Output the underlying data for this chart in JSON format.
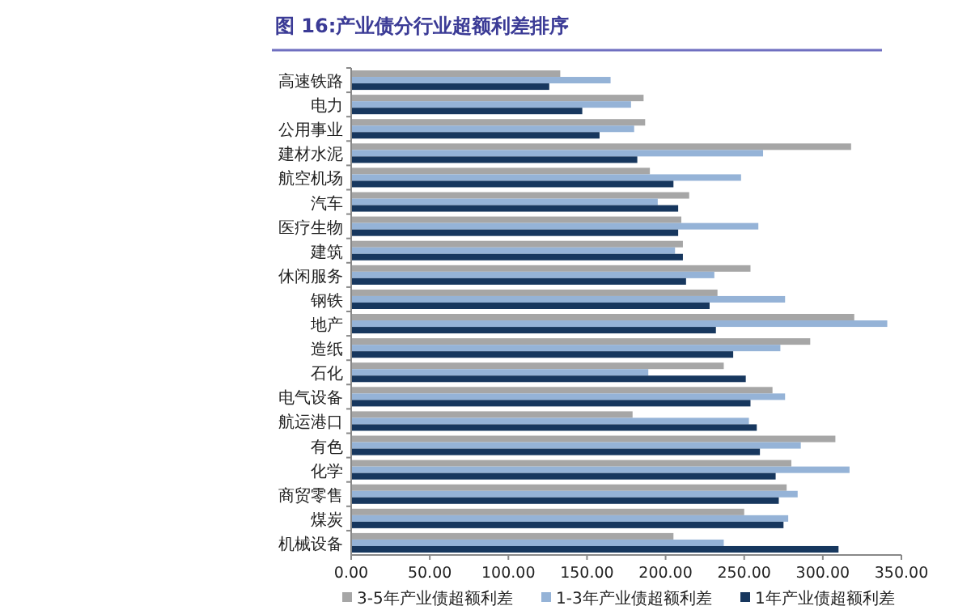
{
  "chart_data": {
    "type": "bar",
    "orientation": "horizontal",
    "title": "图 16:产业债分行业超额利差排序",
    "categories": [
      "高速铁路",
      "电力",
      "公用事业",
      "建材水泥",
      "航空机场",
      "汽车",
      "医疗生物",
      "建筑",
      "休闲服务",
      "钢铁",
      "地产",
      "造纸",
      "石化",
      "电气设备",
      "航运港口",
      "有色",
      "化学",
      "商贸零售",
      "煤炭",
      "机械设备"
    ],
    "series": [
      {
        "name": "3-5年产业债超额利差",
        "color": "#a6a6a6",
        "values": [
          133,
          186,
          187,
          318,
          190,
          215,
          210,
          211,
          254,
          233,
          320,
          292,
          237,
          268,
          179,
          308,
          280,
          277,
          250,
          205
        ]
      },
      {
        "name": "1-3年产业债超额利差",
        "color": "#95b3d7",
        "values": [
          165,
          178,
          180,
          262,
          248,
          195,
          259,
          206,
          231,
          276,
          341,
          273,
          189,
          276,
          253,
          286,
          317,
          284,
          278,
          237
        ]
      },
      {
        "name": "1年产业债超额利差",
        "color": "#17375e",
        "values": [
          126,
          147,
          158,
          182,
          205,
          208,
          208,
          211,
          213,
          228,
          232,
          243,
          251,
          254,
          258,
          260,
          270,
          272,
          275,
          310
        ]
      }
    ],
    "xlim": [
      0,
      350
    ],
    "xticks": [
      {
        "value": 0,
        "label": "0.00"
      },
      {
        "value": 50,
        "label": "50.00"
      },
      {
        "value": 100,
        "label": "100.00"
      },
      {
        "value": 150,
        "label": "150.00"
      },
      {
        "value": 200,
        "label": "200.00"
      },
      {
        "value": 250,
        "label": "250.00"
      },
      {
        "value": 300,
        "label": "300.00"
      },
      {
        "value": 350,
        "label": "350.00"
      }
    ],
    "grid": false,
    "legend": "bottom"
  }
}
